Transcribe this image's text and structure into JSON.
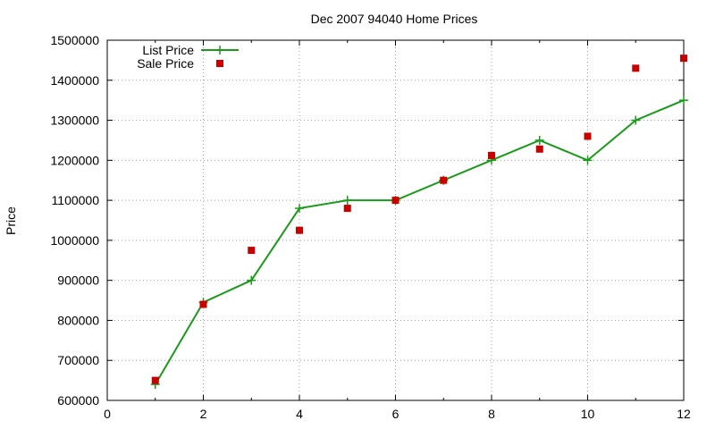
{
  "chart_data": {
    "type": "line",
    "title": "Dec 2007 94040 Home Prices",
    "xlabel": "",
    "ylabel": "Price",
    "xlim": [
      0,
      12
    ],
    "ylim": [
      600000,
      1500000
    ],
    "x_ticks": [
      0,
      2,
      4,
      6,
      8,
      10,
      12
    ],
    "y_ticks": [
      600000,
      700000,
      800000,
      900000,
      1000000,
      1100000,
      1200000,
      1300000,
      1400000,
      1500000
    ],
    "x_tick_labels": [
      "0",
      "2",
      "4",
      "6",
      "8",
      "10",
      "12"
    ],
    "y_tick_labels": [
      "600000",
      "700000",
      "800000",
      "900000",
      "1000000",
      "1100000",
      "1200000",
      "1300000",
      "1400000",
      "1500000"
    ],
    "grid": true,
    "legend_position": "top-left",
    "series": [
      {
        "name": "List Price",
        "style": "line-with-plus-markers",
        "color": "#1a9a1a",
        "x": [
          1,
          2,
          3,
          4,
          5,
          6,
          7,
          8,
          9,
          10,
          11,
          12
        ],
        "y": [
          640000,
          845000,
          900000,
          1080000,
          1100000,
          1100000,
          1150000,
          1200000,
          1250000,
          1200000,
          1300000,
          1350000
        ]
      },
      {
        "name": "Sale Price",
        "style": "square-markers",
        "color": "#c80000",
        "x": [
          1,
          2,
          3,
          4,
          5,
          6,
          7,
          8,
          9,
          10,
          11,
          12
        ],
        "y": [
          650000,
          840000,
          975000,
          1025000,
          1080000,
          1100000,
          1150000,
          1212000,
          1228000,
          1260000,
          1430000,
          1455000
        ]
      }
    ]
  }
}
